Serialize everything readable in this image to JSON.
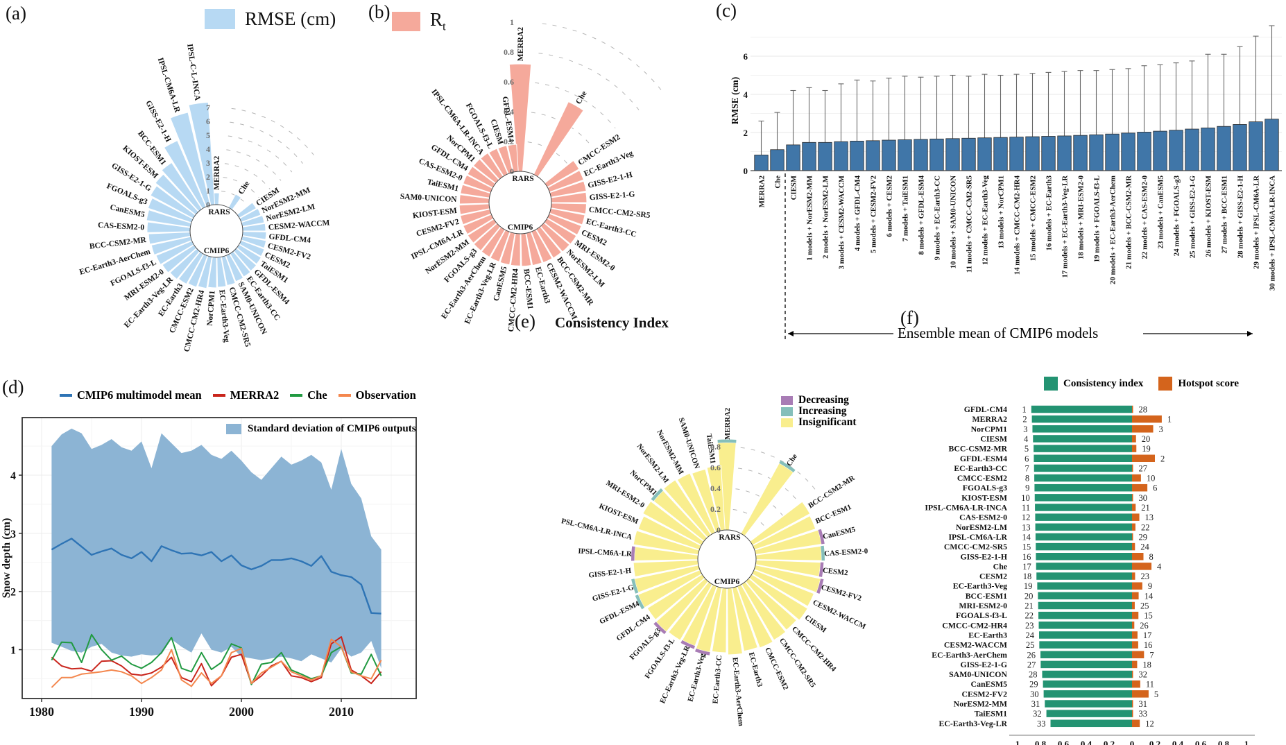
{
  "panels": {
    "a": {
      "tag": "(a)"
    },
    "b": {
      "tag": "(b)"
    },
    "c": {
      "tag": "(c)"
    },
    "d": {
      "tag": "(d)"
    },
    "e": {
      "tag": "(e)"
    },
    "f": {
      "tag": "(f)"
    }
  },
  "chart_data": {
    "a": {
      "type": "polar_bar",
      "legend": {
        "label": "RMSE (cm)",
        "color": "#b7d9f3"
      },
      "center_labels": {
        "top": "RARS",
        "bottom": "CMIP6"
      },
      "radial_ticks": [
        0,
        1,
        2,
        3,
        4,
        5,
        6,
        7
      ],
      "rmax": 7.5,
      "categories": [
        "MERRA2",
        "Che",
        "CIESM",
        "NorESM2-MM",
        "NorESM2-LM",
        "CESM2-WACCM",
        "GFDL-CM4",
        "CESM2-FV2",
        "CESM2",
        "TaiESM1",
        "GFDL-ESM4",
        "EC-Earth3-CC",
        "SAM0-UNICON",
        "CMCC-CM2-SR5",
        "EC-Earth3-Veg",
        "NorCPM1",
        "CMCC-CM2-HR4",
        "CMCC-ESM2",
        "EC-Earth3",
        "EC-Earth3-Veg-LR",
        "MRI-ESM2-0",
        "FGOALS-f3-L",
        "EC-Earth3-AerChem",
        "BCC-CSM2-MR",
        "CAS-ESM2-0",
        "CanESM5",
        "FGOALS-g3",
        "GISS-E2-1-G",
        "KIOST-ESM",
        "BCC-ESM1",
        "GISS-E2-1-H",
        "IPSL-CM6A-LR",
        "IPSL-C-L-INCA"
      ],
      "values": [
        0.85,
        1.1,
        1.4,
        1.5,
        1.6,
        1.65,
        1.7,
        1.75,
        1.8,
        1.85,
        1.9,
        1.95,
        2.0,
        2.1,
        2.15,
        2.2,
        2.3,
        2.4,
        2.5,
        2.6,
        2.7,
        2.8,
        2.9,
        3.0,
        3.1,
        3.2,
        3.3,
        3.5,
        3.7,
        4.0,
        5.2,
        6.9,
        7.4
      ]
    },
    "b": {
      "type": "polar_bar",
      "legend": {
        "label_main": "R",
        "label_sub": "t",
        "color": "#f5a99b"
      },
      "center_labels": {
        "top": "RARS",
        "bottom": "CMIP6"
      },
      "radial_ticks": [
        0,
        0.2,
        0.4,
        0.6,
        0.8,
        1
      ],
      "rmax": 1.0,
      "categories": [
        "MERRA2",
        "Che",
        "CMCC-ESM2",
        "EC-Earth3-Veg",
        "GISS-E2-1-H",
        "GISS-E2-1-G",
        "CMCC-CM2-SR5",
        "EC-Earth3-CC",
        "CESM2",
        "MRI-ESM2-0",
        "NorESM2-LM",
        "BCC-CSM2-MR",
        "CESM2-WACCM",
        "EC-Earth3",
        "BCC-ESM1",
        "CMCC-CM2-HR4",
        "CanESM5",
        "EC-Earth3-Veg-LR",
        "EC-Earth3-AerChem",
        "FGOALS-g3",
        "NorESM2-MM",
        "IPSL-CM6A-LR",
        "CESM2-FV2",
        "KIOST-ESM",
        "SAM0-UNICON",
        "TaiESM1",
        "CAS-ESM2-0",
        "GFDL-CM4",
        "NorCPM1",
        "IPSL-CM6A-LR-INCA",
        "FGOALS-f3-L",
        "CIESM",
        "GFDL-ESM4"
      ],
      "values": [
        0.72,
        0.54,
        0.245,
        0.242,
        0.24,
        0.237,
        0.235,
        0.232,
        0.23,
        0.228,
        0.226,
        0.224,
        0.222,
        0.22,
        0.218,
        0.216,
        0.214,
        0.212,
        0.21,
        0.208,
        0.206,
        0.204,
        0.202,
        0.2,
        0.198,
        0.196,
        0.194,
        0.192,
        0.19,
        0.188,
        0.186,
        0.184,
        0.182
      ]
    },
    "c": {
      "type": "bar",
      "ylabel": "RMSE (cm)",
      "yticks": [
        0,
        2,
        4,
        6
      ],
      "ylim": [
        0,
        7.8
      ],
      "annotation": "Ensemble mean of CMIP6 models",
      "dashed_after_index": 1,
      "categories": [
        "MERRA2",
        "Che",
        "CIESM",
        "1 models + NorESM2-MM",
        "2 models + NorESM2-LM",
        "3 models + CESM2-WACCM",
        "4 models + GFDL-CM4",
        "5 models + CESM2-FV2",
        "6 models + CESM2",
        "7 models + TaiESM1",
        "8 models + GFDL-ESM4",
        "9 models + EC-Earth3-CC",
        "10 models + SAM0-UNICON",
        "11 models + CMCC-CM2-SR5",
        "12 models + EC-Earth3-Veg",
        "13 models + NorCPM1",
        "14 models + CMCC-CM2-HR4",
        "15 models + CMCC-ESM2",
        "16 models + EC-Earth3",
        "17 models + EC-Earth3-Veg-LR",
        "18 models + MRI-ESM2-0",
        "19 models + FGOALS-f3-L",
        "20 models + EC-Earth3-AerChem",
        "21 models + BCC-CSM2-MR",
        "22 models + CAS-ESM2-0",
        "23 models + CanESM5",
        "24 models + FGOALS-g3",
        "25 models + GISS-E2-1-G",
        "26 models + KIOST-ESM",
        "27 models + BCC-ESM1",
        "28 models + GISS-E2-1-H",
        "29 models + IPSL-CM6A-LR",
        "30 models + IPSL-CM6A-LR-INCA"
      ],
      "values": [
        0.82,
        1.1,
        1.35,
        1.48,
        1.48,
        1.52,
        1.55,
        1.57,
        1.6,
        1.62,
        1.64,
        1.66,
        1.68,
        1.7,
        1.72,
        1.74,
        1.76,
        1.78,
        1.8,
        1.82,
        1.85,
        1.88,
        1.92,
        1.97,
        2.02,
        2.07,
        2.12,
        2.18,
        2.24,
        2.32,
        2.42,
        2.56,
        2.7
      ],
      "whisker_tops": [
        2.6,
        3.05,
        4.2,
        4.35,
        4.2,
        4.55,
        4.75,
        4.7,
        4.85,
        4.95,
        4.9,
        4.95,
        5.0,
        4.95,
        5.05,
        5.0,
        5.05,
        5.1,
        5.15,
        5.2,
        5.25,
        5.25,
        5.3,
        5.35,
        5.5,
        5.55,
        5.65,
        5.75,
        6.1,
        6.1,
        6.5,
        7.05,
        7.6
      ],
      "bar_color": "#4076a8"
    },
    "d": {
      "type": "line",
      "ylabel": "Snow depth (cm)",
      "yticks": [
        1,
        2,
        3,
        4
      ],
      "xticks": [
        1980,
        1990,
        2000,
        2010
      ],
      "ylim": [
        0.16,
        4.99
      ],
      "band_label": "Standard deviation of CMIP6 outputs",
      "band_color": "#8cb4d4",
      "years": [
        1981,
        1982,
        1983,
        1984,
        1985,
        1986,
        1987,
        1988,
        1989,
        1990,
        1991,
        1992,
        1993,
        1994,
        1995,
        1996,
        1997,
        1998,
        1999,
        2000,
        2001,
        2002,
        2003,
        2004,
        2005,
        2006,
        2007,
        2008,
        2009,
        2010,
        2011,
        2012,
        2013,
        2014
      ],
      "band_upper": [
        4.5,
        4.7,
        4.8,
        4.72,
        4.45,
        4.52,
        4.62,
        4.48,
        4.42,
        4.58,
        4.12,
        4.72,
        4.55,
        4.38,
        4.42,
        4.52,
        4.35,
        4.28,
        4.42,
        4.25,
        4.05,
        3.92,
        4.12,
        4.32,
        4.18,
        4.25,
        4.35,
        4.22,
        3.75,
        4.45,
        3.85,
        3.6,
        2.95,
        2.72
      ],
      "band_lower": [
        1.12,
        1.05,
        0.98,
        0.95,
        1.05,
        1.1,
        0.95,
        0.9,
        0.88,
        0.92,
        0.9,
        0.92,
        1.18,
        1.05,
        0.95,
        1.28,
        1.0,
        0.95,
        1.05,
        0.88,
        0.85,
        0.82,
        0.85,
        0.88,
        0.85,
        0.8,
        0.92,
        0.85,
        0.78,
        1.02,
        0.88,
        0.95,
        1.15,
        0.68
      ],
      "series": [
        {
          "name": "CMIP6 multimodel mean",
          "color": "#2e74b5",
          "values": [
            2.72,
            2.82,
            2.91,
            2.77,
            2.63,
            2.69,
            2.74,
            2.63,
            2.57,
            2.68,
            2.52,
            2.78,
            2.71,
            2.65,
            2.66,
            2.62,
            2.68,
            2.52,
            2.62,
            2.45,
            2.38,
            2.44,
            2.54,
            2.54,
            2.57,
            2.52,
            2.44,
            2.61,
            2.34,
            2.28,
            2.25,
            2.12,
            1.63,
            1.62
          ]
        },
        {
          "name": "MERRA2",
          "color": "#c9251c",
          "values": [
            0.87,
            0.72,
            0.67,
            0.68,
            0.63,
            0.8,
            0.81,
            0.72,
            0.58,
            0.56,
            0.6,
            0.7,
            0.87,
            0.52,
            0.45,
            0.76,
            0.38,
            0.55,
            0.87,
            0.92,
            0.42,
            0.55,
            0.72,
            0.8,
            0.55,
            0.52,
            0.45,
            0.52,
            1.1,
            1.22,
            0.65,
            0.55,
            0.42,
            0.62
          ]
        },
        {
          "name": "Che",
          "color": "#219a41",
          "values": [
            0.82,
            1.13,
            1.12,
            0.78,
            1.26,
            1.0,
            0.82,
            0.89,
            0.75,
            0.68,
            0.78,
            0.95,
            1.21,
            0.68,
            0.62,
            0.95,
            0.66,
            0.78,
            1.1,
            1.03,
            0.4,
            0.75,
            0.78,
            0.95,
            0.65,
            0.58,
            0.5,
            0.55,
            0.95,
            1.05,
            0.6,
            0.58,
            0.92,
            0.55
          ]
        },
        {
          "name": "Observation",
          "color": "#f4874e",
          "values": [
            0.35,
            0.52,
            0.52,
            0.58,
            0.6,
            0.62,
            0.65,
            0.62,
            0.55,
            0.42,
            0.52,
            0.65,
            1.0,
            0.48,
            0.37,
            0.6,
            0.42,
            0.55,
            0.95,
            1.02,
            0.42,
            0.6,
            0.7,
            0.8,
            0.62,
            0.55,
            0.48,
            0.55,
            1.18,
            1.05,
            0.62,
            0.55,
            0.5,
            0.82
          ]
        }
      ]
    },
    "e": {
      "type": "polar_bar",
      "title": "Consistency Index",
      "legend": [
        {
          "label": "Decreasing",
          "color": "#a87cb5"
        },
        {
          "label": "Increasing",
          "color": "#85bfba"
        },
        {
          "label": "Insignificant",
          "color": "#f9ee8e"
        }
      ],
      "center_labels": {
        "top": "RARS",
        "bottom": "CMIP6"
      },
      "radial_ticks": [
        0,
        0.2,
        0.4,
        0.6,
        0.8
      ],
      "rmax": 0.9,
      "categories": [
        "MERRA2",
        "Che",
        "BCC-CSM2-MR",
        "BCC-ESM1",
        "CanESM5",
        "CAS-ESM2-0",
        "CESM2",
        "CESM2-FV2",
        "CESM2-WACCM",
        "CIESM",
        "CMCC-CM2-HR4",
        "CMCC-CM2-SR5",
        "CMCC-ESM2",
        "EC-Earth3",
        "EC-Earth3-AerChem",
        "EC-Earth3-CC",
        "EC-Earth3-Veg",
        "EC-Earth3-Veg-LR",
        "FGOALS-f3-L",
        "FGOALS-g3",
        "GFDL-CM4",
        "GFDL-ESM4",
        "GISS-E2-1-G",
        "GISS-E2-1-H",
        "IPSL-CM6A-LR",
        "PSL-CM6A-LR-INCA",
        "KIOST-ESM",
        "MRI-ESM2-0",
        "NorCPM1",
        "NorESM2-LM",
        "NorESM2-MM",
        "SAM0-UNICON",
        "TaiESM1"
      ],
      "values": [
        0.84,
        0.77,
        0.63,
        0.62,
        0.64,
        0.63,
        0.62,
        0.64,
        0.62,
        0.63,
        0.61,
        0.62,
        0.63,
        0.62,
        0.64,
        0.62,
        0.63,
        0.61,
        0.62,
        0.63,
        0.62,
        0.64,
        0.63,
        0.62,
        0.61,
        0.63,
        0.62,
        0.64,
        0.62,
        0.63,
        0.62,
        0.61,
        0.62
      ],
      "trends": [
        "increasing",
        "increasing",
        null,
        null,
        "decreasing",
        "increasing",
        "decreasing",
        "decreasing",
        null,
        null,
        null,
        null,
        null,
        null,
        null,
        null,
        "decreasing",
        "decreasing",
        null,
        "decreasing",
        null,
        "increasing",
        "increasing",
        null,
        "decreasing",
        null,
        null,
        null,
        "increasing",
        null,
        null,
        null,
        null
      ]
    },
    "f": {
      "type": "diverging_bar",
      "legend": [
        {
          "label": "Consistency index",
          "color": "#239372"
        },
        {
          "label": "Hotspot score",
          "color": "#d4641c"
        }
      ],
      "axis_ticks": [
        "1",
        "0.8",
        "0.6",
        "0.4",
        "0.2",
        "0",
        "0.2",
        "0.4",
        "0.6",
        "0.8",
        "1"
      ],
      "rows": [
        {
          "model": "GFDL-CM4",
          "rank": 1,
          "ci": 0.88,
          "hs": 0.006,
          "hs_rank": 28
        },
        {
          "model": "MERRA2",
          "rank": 2,
          "ci": 0.875,
          "hs": 0.26,
          "hs_rank": 1
        },
        {
          "model": "NorCPM1",
          "rank": 3,
          "ci": 0.87,
          "hs": 0.185,
          "hs_rank": 3
        },
        {
          "model": "CIESM",
          "rank": 4,
          "ci": 0.865,
          "hs": 0.035,
          "hs_rank": 20
        },
        {
          "model": "BCC-CSM2-MR",
          "rank": 5,
          "ci": 0.86,
          "hs": 0.038,
          "hs_rank": 19
        },
        {
          "model": "GFDL-ESM4",
          "rank": 6,
          "ci": 0.858,
          "hs": 0.2,
          "hs_rank": 2
        },
        {
          "model": "EC-Earth3-CC",
          "rank": 7,
          "ci": 0.856,
          "hs": 0.008,
          "hs_rank": 27
        },
        {
          "model": "CMCC-ESM2",
          "rank": 8,
          "ci": 0.854,
          "hs": 0.078,
          "hs_rank": 10
        },
        {
          "model": "FGOALS-g3",
          "rank": 9,
          "ci": 0.852,
          "hs": 0.134,
          "hs_rank": 6
        },
        {
          "model": "KIOST-ESM",
          "rank": 10,
          "ci": 0.85,
          "hs": 0.004,
          "hs_rank": 30
        },
        {
          "model": "IPSL-CM6A-LR-INCA",
          "rank": 11,
          "ci": 0.848,
          "hs": 0.032,
          "hs_rank": 21
        },
        {
          "model": "CAS-ESM2-0",
          "rank": 12,
          "ci": 0.846,
          "hs": 0.064,
          "hs_rank": 13
        },
        {
          "model": "NorESM2-LM",
          "rank": 13,
          "ci": 0.845,
          "hs": 0.03,
          "hs_rank": 22
        },
        {
          "model": "IPSL-CM6A-LR",
          "rank": 14,
          "ci": 0.843,
          "hs": 0.005,
          "hs_rank": 29
        },
        {
          "model": "CMCC-CM2-SR5",
          "rank": 15,
          "ci": 0.841,
          "hs": 0.026,
          "hs_rank": 24
        },
        {
          "model": "GISS-E2-1-H",
          "rank": 16,
          "ci": 0.84,
          "hs": 0.1,
          "hs_rank": 8
        },
        {
          "model": "Che",
          "rank": 17,
          "ci": 0.838,
          "hs": 0.17,
          "hs_rank": 4
        },
        {
          "model": "CESM2",
          "rank": 18,
          "ci": 0.835,
          "hs": 0.027,
          "hs_rank": 23
        },
        {
          "model": "EC-Earth3-Veg",
          "rank": 19,
          "ci": 0.828,
          "hs": 0.09,
          "hs_rank": 9
        },
        {
          "model": "BCC-ESM1",
          "rank": 20,
          "ci": 0.822,
          "hs": 0.058,
          "hs_rank": 14
        },
        {
          "model": "MRI-ESM2-0",
          "rank": 21,
          "ci": 0.82,
          "hs": 0.024,
          "hs_rank": 25
        },
        {
          "model": "FGOALS-f3-L",
          "rank": 22,
          "ci": 0.818,
          "hs": 0.056,
          "hs_rank": 15
        },
        {
          "model": "CMCC-CM2-HR4",
          "rank": 23,
          "ci": 0.815,
          "hs": 0.02,
          "hs_rank": 26
        },
        {
          "model": "EC-Earth3",
          "rank": 24,
          "ci": 0.812,
          "hs": 0.048,
          "hs_rank": 17
        },
        {
          "model": "CESM2-WACCM",
          "rank": 25,
          "ci": 0.81,
          "hs": 0.054,
          "hs_rank": 16
        },
        {
          "model": "EC-Earth3-AerChem",
          "rank": 26,
          "ci": 0.8,
          "hs": 0.105,
          "hs_rank": 7
        },
        {
          "model": "GISS-E2-1-G",
          "rank": 27,
          "ci": 0.798,
          "hs": 0.045,
          "hs_rank": 18
        },
        {
          "model": "SAM0-UNICON",
          "rank": 28,
          "ci": 0.785,
          "hs": 0.003,
          "hs_rank": 32
        },
        {
          "model": "CanESM5",
          "rank": 29,
          "ci": 0.778,
          "hs": 0.072,
          "hs_rank": 11
        },
        {
          "model": "CESM2-FV2",
          "rank": 30,
          "ci": 0.772,
          "hs": 0.145,
          "hs_rank": 5
        },
        {
          "model": "NorESM2-MM",
          "rank": 31,
          "ci": 0.762,
          "hs": 0.004,
          "hs_rank": 31
        },
        {
          "model": "TaiESM1",
          "rank": 32,
          "ci": 0.748,
          "hs": 0.002,
          "hs_rank": 33
        },
        {
          "model": "EC-Earth3-Veg-LR",
          "rank": 33,
          "ci": 0.712,
          "hs": 0.068,
          "hs_rank": 12
        }
      ]
    }
  }
}
